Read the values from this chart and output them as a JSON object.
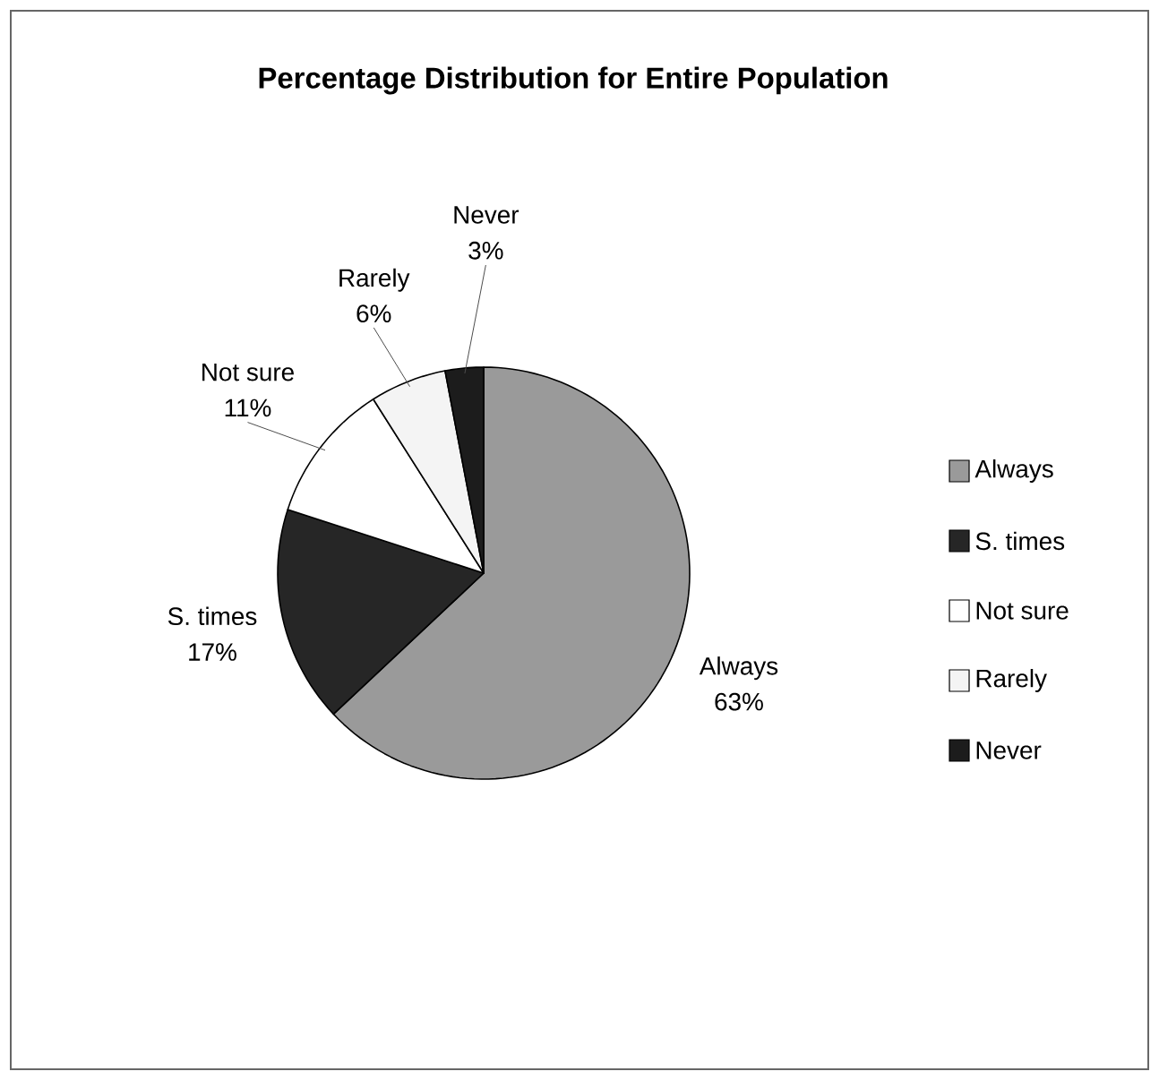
{
  "chart_data": {
    "type": "pie",
    "title": "Percentage Distribution for Entire Population",
    "categories": [
      "Always",
      "S. times",
      "Not sure",
      "Rarely",
      "Never"
    ],
    "values": [
      63,
      17,
      11,
      6,
      3
    ],
    "value_labels": [
      "63%",
      "17%",
      "11%",
      "6%",
      "3%"
    ],
    "colors": [
      "#9a9a9a",
      "#262626",
      "#ffffff",
      "#f4f4f4",
      "#1c1c1c"
    ],
    "legend": "right"
  }
}
